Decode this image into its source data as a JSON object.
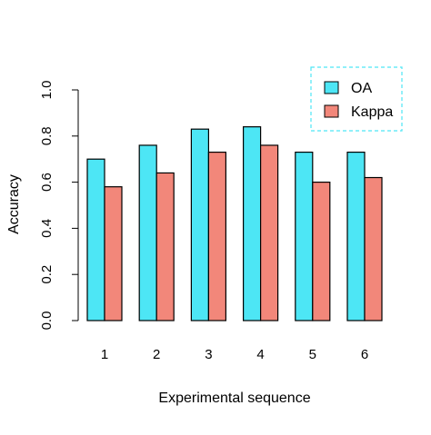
{
  "chart_data": {
    "type": "bar",
    "categories": [
      "1",
      "2",
      "3",
      "4",
      "5",
      "6"
    ],
    "series": [
      {
        "name": "OA",
        "color": "#4DE6F5",
        "values": [
          0.7,
          0.76,
          0.83,
          0.84,
          0.73,
          0.73
        ]
      },
      {
        "name": "Kappa",
        "color": "#F2877A",
        "values": [
          0.58,
          0.64,
          0.73,
          0.76,
          0.6,
          0.62
        ]
      }
    ],
    "title": "",
    "xlabel": "Experimental sequence",
    "ylabel": "Accuracy",
    "ylim": [
      0,
      1
    ],
    "yticks": [
      "0.0",
      "0.2",
      "0.4",
      "0.6",
      "0.8",
      "1.0"
    ],
    "grid": false,
    "legend": {
      "position": "top-right",
      "border": "dashed",
      "border_color": "#4DE6F5"
    }
  }
}
